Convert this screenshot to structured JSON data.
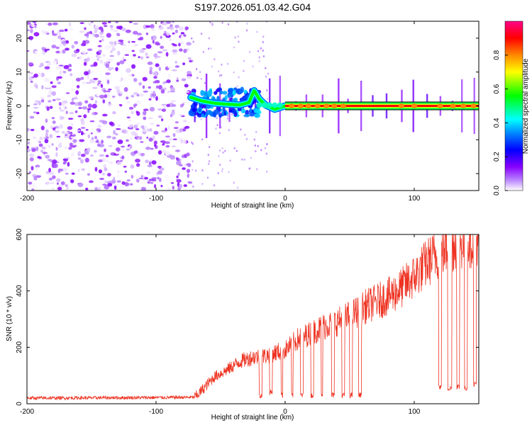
{
  "figure": {
    "title": "S197.2026.051.03.42.G04"
  },
  "chart_data": [
    {
      "type": "heatmap",
      "name": "spectrogram",
      "title": "S197.2026.051.03.42.G04",
      "xlabel": "Height of straight line (km)",
      "ylabel": "Frequency (Hz)",
      "xlim": [
        -200,
        150
      ],
      "ylim": [
        -25,
        25
      ],
      "xticks": [
        -200,
        -100,
        0,
        100
      ],
      "yticks": [
        -20,
        -10,
        0,
        10,
        20
      ],
      "colorbar": {
        "label": "Normalized spectral amplitude",
        "range": [
          0,
          1
        ],
        "ticks": [
          0.0,
          0.2,
          0.4,
          0.6,
          0.8
        ],
        "colormap": [
          "#ffffff",
          "#8800ff",
          "#0000ff",
          "#00ffff",
          "#00ff00",
          "#ffff00",
          "#ff0000",
          "#ff00ff"
        ]
      },
      "regions": [
        {
          "x_range": [
            -200,
            -73
          ],
          "frequency_range": [
            -25,
            25
          ],
          "description": "broadband noise",
          "amplitude_range": [
            0.0,
            0.15
          ]
        },
        {
          "x_range": [
            -73,
            -20
          ],
          "frequency_range": [
            -3,
            5
          ],
          "description": "scattered carrier",
          "amplitude_range": [
            0.2,
            0.5
          ]
        },
        {
          "x_range": [
            -20,
            150
          ],
          "frequency_range": [
            -1,
            1
          ],
          "description": "strong carrier at 0 Hz",
          "amplitude_range": [
            0.5,
            1.0
          ]
        }
      ],
      "carrier_track_hz": [
        {
          "x": -73,
          "f": 2.5
        },
        {
          "x": -65,
          "f": 1.5
        },
        {
          "x": -55,
          "f": 0.8
        },
        {
          "x": -45,
          "f": 0.5
        },
        {
          "x": -35,
          "f": 0.3
        },
        {
          "x": -28,
          "f": 1.0
        },
        {
          "x": -24,
          "f": 4.5
        },
        {
          "x": -20,
          "f": 2.0
        },
        {
          "x": -15,
          "f": 0.2
        },
        {
          "x": -8,
          "f": -1.0
        },
        {
          "x": 0,
          "f": 0.0
        },
        {
          "x": 150,
          "f": 0.0
        }
      ]
    },
    {
      "type": "line",
      "name": "snr",
      "xlabel": "Height of straight line (km)",
      "ylabel": "SNR (10 * v/v)",
      "xlim": [
        -200,
        150
      ],
      "ylim": [
        0,
        600
      ],
      "xticks": [
        -200,
        -100,
        0,
        100
      ],
      "yticks": [
        0,
        200,
        400,
        600
      ],
      "color": "#ee3322",
      "series": [
        {
          "name": "SNR",
          "x": [
            -200,
            -150,
            -100,
            -70,
            -65,
            -55,
            -45,
            -35,
            -25,
            -15,
            -5,
            0,
            10,
            20,
            30,
            40,
            50,
            60,
            70,
            80,
            90,
            100,
            110,
            120,
            130,
            140,
            148
          ],
          "values": [
            20,
            21,
            22,
            23,
            45,
            95,
            120,
            150,
            165,
            170,
            185,
            190,
            230,
            250,
            275,
            290,
            310,
            340,
            360,
            380,
            410,
            450,
            500,
            540,
            565,
            580,
            590
          ]
        }
      ],
      "dropouts": [
        {
          "x_range": [
            -20,
            -18
          ],
          "min": 30
        },
        {
          "x_range": [
            -12,
            -10
          ],
          "min": 40
        },
        {
          "x_range": [
            -3,
            -2
          ],
          "min": 30
        },
        {
          "x_range": [
            5,
            6
          ],
          "min": 30
        },
        {
          "x_range": [
            12,
            14
          ],
          "min": 30
        },
        {
          "x_range": [
            20,
            22
          ],
          "min": 30
        },
        {
          "x_range": [
            28,
            29
          ],
          "min": 30
        },
        {
          "x_range": [
            36,
            38
          ],
          "min": 30
        },
        {
          "x_range": [
            44,
            46
          ],
          "min": 30
        },
        {
          "x_range": [
            50,
            52
          ],
          "min": 30
        },
        {
          "x_range": [
            57,
            59
          ],
          "min": 30
        },
        {
          "x_range": [
            119,
            121
          ],
          "min": 60
        },
        {
          "x_range": [
            126,
            129
          ],
          "min": 55
        },
        {
          "x_range": [
            133,
            135
          ],
          "min": 60
        },
        {
          "x_range": [
            139,
            141
          ],
          "min": 55
        },
        {
          "x_range": [
            146,
            148
          ],
          "min": 70
        }
      ]
    }
  ]
}
